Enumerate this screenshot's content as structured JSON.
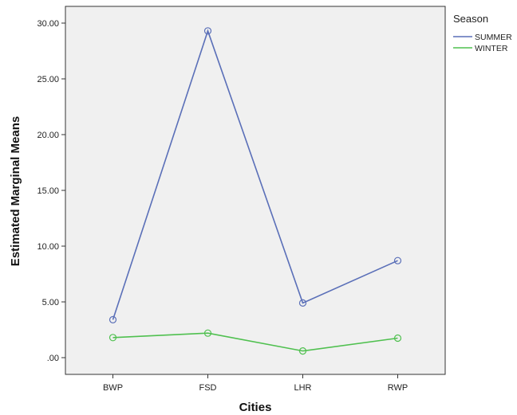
{
  "chart_data": {
    "type": "line",
    "categories": [
      "BWP",
      "FSD",
      "LHR",
      "RWP"
    ],
    "series": [
      {
        "name": "SUMMER",
        "values": [
          3.4,
          29.3,
          4.9,
          8.7
        ],
        "color": "#5a6fb8"
      },
      {
        "name": "WINTER",
        "values": [
          1.8,
          2.2,
          0.6,
          1.75
        ],
        "color": "#4fc04f"
      }
    ],
    "xlabel": "Cities",
    "ylabel": "Estimated Marginal Means",
    "ylim": [
      -1.5,
      31.5
    ],
    "yticks": [
      0,
      5,
      10,
      15,
      20,
      25,
      30
    ],
    "ytick_labels": [
      ".00",
      "5.00",
      "10.00",
      "15.00",
      "20.00",
      "25.00",
      "30.00"
    ],
    "legend_title": "Season",
    "legend_position": "right",
    "marker": "open-circle",
    "grid": false,
    "plot_background": "#f0f0f0"
  }
}
